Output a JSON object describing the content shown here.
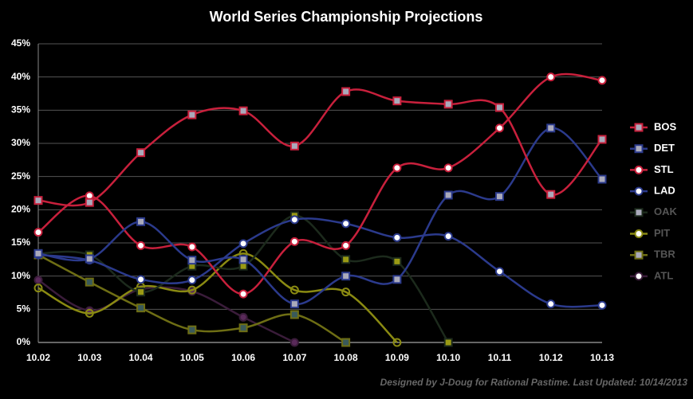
{
  "chart_data": {
    "type": "line",
    "title": "World Series Championship Projections",
    "footer": "Designed by J-Doug for Rational Pastime. Last Updated: 10/14/2013",
    "categories": [
      "10.02",
      "10.03",
      "10.04",
      "10.05",
      "10.06",
      "10.07",
      "10.08",
      "10.09",
      "10.10",
      "10.11",
      "10.12",
      "10.13"
    ],
    "ylim": [
      0,
      45
    ],
    "yticks": [
      {
        "value": 0,
        "label": "0%"
      },
      {
        "value": 5,
        "label": "5%"
      },
      {
        "value": 10,
        "label": "10%"
      },
      {
        "value": 15,
        "label": "15%"
      },
      {
        "value": 20,
        "label": "20%"
      },
      {
        "value": 25,
        "label": "25%"
      },
      {
        "value": 30,
        "label": "30%"
      },
      {
        "value": 35,
        "label": "35%"
      },
      {
        "value": 40,
        "label": "40%"
      },
      {
        "value": 45,
        "label": "45%"
      }
    ],
    "grid": true,
    "legend": "right",
    "series": [
      {
        "name": "BOS",
        "color": "#c8203c",
        "marker": "square",
        "values": [
          21.4,
          21.1,
          28.6,
          34.3,
          34.9,
          29.6,
          37.8,
          36.4,
          35.9,
          35.4,
          22.3,
          30.6
        ]
      },
      {
        "name": "DET",
        "color": "#2b3a8c",
        "marker": "square",
        "values": [
          13.4,
          12.6,
          18.2,
          12.4,
          12.5,
          5.8,
          10.0,
          9.5,
          22.2,
          22.0,
          32.3,
          24.6
        ]
      },
      {
        "name": "STL",
        "color": "#c8203c",
        "marker": "circle",
        "values": [
          16.6,
          22.1,
          14.6,
          14.4,
          7.3,
          15.2,
          14.6,
          26.3,
          26.3,
          32.3,
          40.0,
          39.5
        ]
      },
      {
        "name": "LAD",
        "color": "#2b3a8c",
        "marker": "circle",
        "values": [
          13.2,
          12.4,
          9.5,
          9.4,
          14.9,
          18.5,
          17.9,
          15.8,
          16.0,
          10.7,
          5.8,
          5.6
        ]
      },
      {
        "name": "OAK",
        "color": "#1c2a1c",
        "marker": "square",
        "values": [
          13.4,
          13.2,
          7.6,
          11.5,
          11.5,
          19.1,
          12.5,
          12.2,
          0,
          null,
          null,
          null
        ]
      },
      {
        "name": "PIT",
        "color": "#8a8a12",
        "marker": "circle",
        "values": [
          8.2,
          4.4,
          8.4,
          7.9,
          13.4,
          7.9,
          7.6,
          0,
          null,
          null,
          null,
          null
        ]
      },
      {
        "name": "TBR",
        "color": "#6e6e14",
        "marker": "square",
        "values": [
          13.2,
          9.1,
          5.2,
          1.9,
          2.2,
          4.2,
          0,
          null,
          null,
          null,
          null,
          null
        ]
      },
      {
        "name": "ATL",
        "color": "#3a1c3a",
        "marker": "circle",
        "values": [
          9.4,
          4.8,
          8.0,
          7.7,
          3.8,
          0,
          null,
          null,
          null,
          null,
          null,
          null
        ]
      }
    ]
  }
}
